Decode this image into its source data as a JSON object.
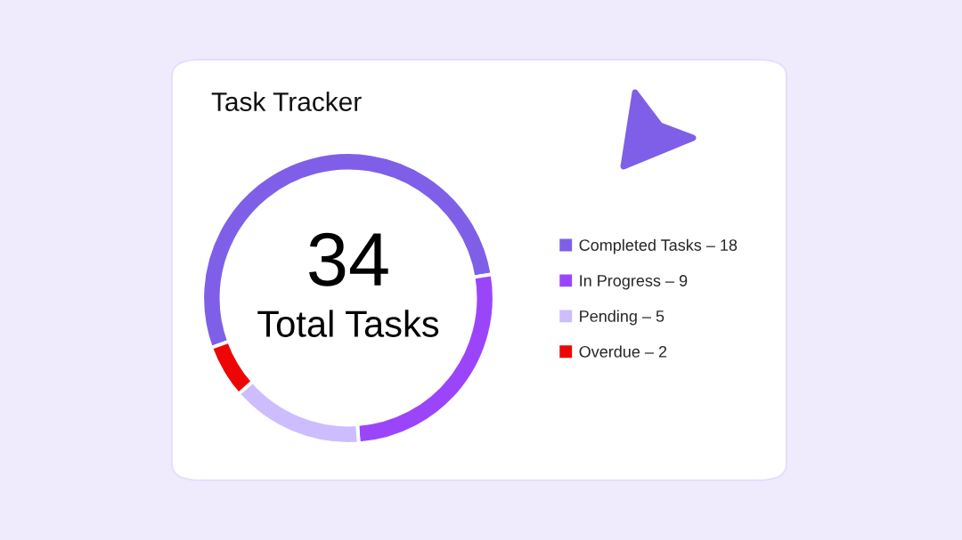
{
  "chart_data": {
    "type": "donut",
    "title": "Task Tracker",
    "categories": [
      "Completed Tasks",
      "In Progress",
      "Pending",
      "Overdue"
    ],
    "values": [
      18,
      9,
      5,
      2
    ],
    "value_labels": [
      "18",
      "9",
      "5",
      "2"
    ],
    "colors": [
      "#7f5fe8",
      "#9b45fb",
      "#cdbdfe",
      "#ee0606"
    ],
    "annotations": [
      "34",
      "Total Tasks"
    ],
    "legend": "right"
  }
}
